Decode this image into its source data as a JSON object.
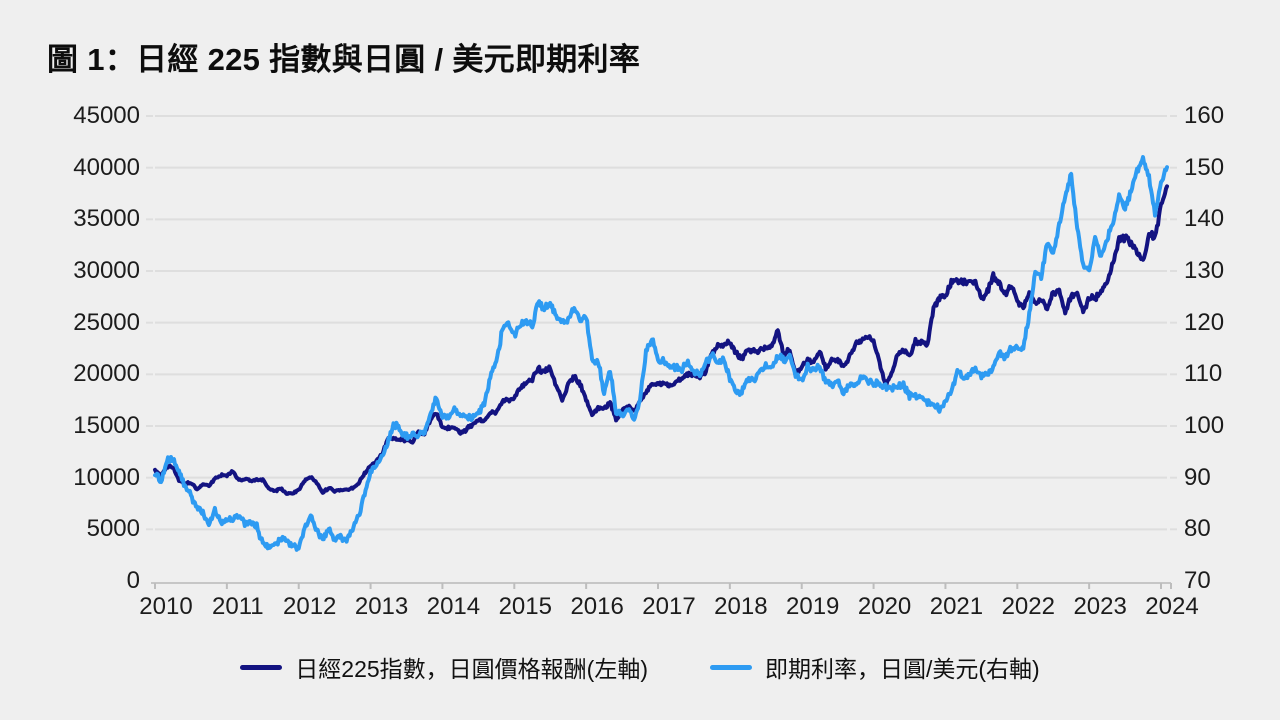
{
  "title": "圖 1：日經 225 指數與日圓 / 美元即期利率",
  "colors": {
    "background": "#EFEFEF",
    "gridline": "#DEDEDE",
    "axis_line": "#C6C6C6",
    "axis_tick": "#BDBDBD",
    "label_text": "#1C1C1C",
    "nikkei_line": "#131381",
    "usdjpy_line": "#2E9BF2"
  },
  "chart_data": {
    "type": "line",
    "title": "圖 1：日經 225 指數與日圓 / 美元即期利率",
    "legend_position": "bottom",
    "grid": "horizontal",
    "x_ticks": [
      "2010",
      "2011",
      "2012",
      "2013",
      "2014",
      "2015",
      "2016",
      "2017",
      "2018",
      "2019",
      "2020",
      "2021",
      "2022",
      "2023",
      "2024"
    ],
    "x_sampling": "monthly from 2010-01 to 2024-02",
    "left_axis": {
      "range": [
        0,
        45000
      ],
      "ticks": [
        45000,
        40000,
        35000,
        30000,
        25000,
        20000,
        15000,
        10000,
        5000,
        0
      ]
    },
    "right_axis": {
      "range": [
        70,
        160
      ],
      "ticks": [
        160,
        150,
        140,
        130,
        120,
        110,
        100,
        90,
        80,
        70
      ]
    },
    "series": [
      {
        "name": "日經225指數，日圓價格報酬(左軸)",
        "axis": "left",
        "color": "#131381",
        "monthly_values": [
          10650,
          10150,
          11090,
          11050,
          9750,
          9380,
          9540,
          8824,
          9369,
          9202,
          9938,
          10229,
          10237,
          10624,
          9755,
          9850,
          9694,
          9816,
          9833,
          8955,
          8700,
          8988,
          8435,
          8455,
          8802,
          9723,
          10084,
          9521,
          8543,
          9007,
          8695,
          8840,
          8870,
          8928,
          9446,
          10395,
          11139,
          11559,
          12398,
          13861,
          13775,
          13677,
          13668,
          13389,
          14456,
          14328,
          15662,
          16291,
          14914,
          14841,
          14828,
          14304,
          14632,
          15162,
          15621,
          15425,
          16174,
          16414,
          17460,
          17451,
          17674,
          18798,
          19207,
          19520,
          20563,
          20236,
          20585,
          18890,
          17388,
          19083,
          19747,
          19034,
          17518,
          16027,
          16759,
          16666,
          17235,
          15576,
          16569,
          16887,
          16450,
          17425,
          18308,
          19114,
          19041,
          19119,
          18909,
          19197,
          19651,
          20033,
          19925,
          19646,
          20356,
          22012,
          22725,
          22765,
          23098,
          22068,
          21454,
          22468,
          22202,
          22305,
          22554,
          22865,
          24120,
          21920,
          22351,
          20015,
          20773,
          21385,
          21206,
          22259,
          20601,
          21276,
          21522,
          20704,
          21756,
          22927,
          23294,
          23657,
          23205,
          21143,
          18917,
          20194,
          21878,
          22288,
          21710,
          23140,
          23185,
          22977,
          26434,
          27444,
          27663,
          28966,
          29179,
          28813,
          28860,
          28792,
          27284,
          28090,
          29453,
          28893,
          27822,
          28792,
          27002,
          26527,
          27821,
          26848,
          27280,
          26393,
          27802,
          28092,
          25937,
          27587,
          27969,
          26095,
          27327,
          27446,
          28041,
          28856,
          30888,
          33189,
          33172,
          32619,
          31858,
          30859,
          33487,
          33464,
          36286,
          38200
        ]
      },
      {
        "name": "即期利率，日圓/美元(右軸)",
        "axis": "right",
        "color": "#2E9BF2",
        "monthly_values": [
          91.0,
          88.9,
          93.4,
          93.8,
          91.1,
          88.4,
          86.4,
          84.2,
          83.5,
          80.5,
          83.7,
          81.1,
          82.0,
          81.8,
          82.8,
          81.2,
          81.5,
          80.6,
          77.2,
          76.7,
          77.1,
          78.2,
          77.6,
          76.9,
          76.3,
          80.1,
          82.8,
          79.8,
          78.3,
          79.8,
          78.1,
          78.4,
          77.9,
          79.8,
          82.5,
          86.7,
          91.1,
          92.6,
          94.2,
          97.4,
          100.4,
          99.1,
          97.9,
          98.2,
          98.3,
          98.4,
          102.4,
          105.3,
          102.0,
          101.8,
          103.2,
          102.2,
          101.8,
          101.3,
          102.8,
          104.1,
          109.7,
          112.3,
          118.6,
          119.8,
          117.5,
          119.6,
          120.1,
          119.4,
          124.1,
          122.5,
          123.9,
          121.2,
          119.9,
          120.6,
          123.1,
          120.2,
          121.1,
          112.7,
          112.6,
          106.5,
          110.7,
          102.8,
          102.1,
          103.4,
          101.3,
          104.8,
          114.5,
          116.9,
          112.8,
          112.8,
          111.4,
          111.5,
          110.8,
          112.4,
          110.3,
          110.0,
          112.5,
          113.6,
          112.5,
          112.7,
          109.2,
          106.7,
          106.3,
          109.3,
          108.8,
          110.7,
          111.9,
          111.0,
          113.7,
          112.9,
          113.6,
          109.7,
          108.9,
          111.4,
          110.9,
          111.4,
          108.3,
          107.9,
          108.8,
          106.3,
          108.1,
          108.0,
          109.5,
          108.6,
          108.4,
          108.0,
          107.5,
          107.2,
          107.8,
          107.9,
          105.9,
          105.9,
          105.5,
          104.6,
          104.3,
          103.2,
          104.7,
          106.6,
          110.7,
          109.3,
          109.8,
          111.1,
          109.7,
          110.0,
          111.3,
          113.9,
          113.1,
          115.1,
          115.1,
          115.0,
          121.7,
          129.7,
          128.7,
          135.7,
          133.2,
          138.9,
          144.7,
          148.7,
          138.1,
          131.1,
          130.2,
          136.2,
          132.8,
          136.3,
          139.3,
          144.3,
          142.3,
          145.5,
          149.4,
          151.7,
          148.2,
          141.0,
          146.9,
          150.1
        ]
      }
    ]
  },
  "legend": {
    "items": [
      {
        "label": "日經225指數，日圓價格報酬(左軸)",
        "color": "#131381"
      },
      {
        "label": "即期利率，日圓/美元(右軸)",
        "color": "#2E9BF2"
      }
    ]
  }
}
